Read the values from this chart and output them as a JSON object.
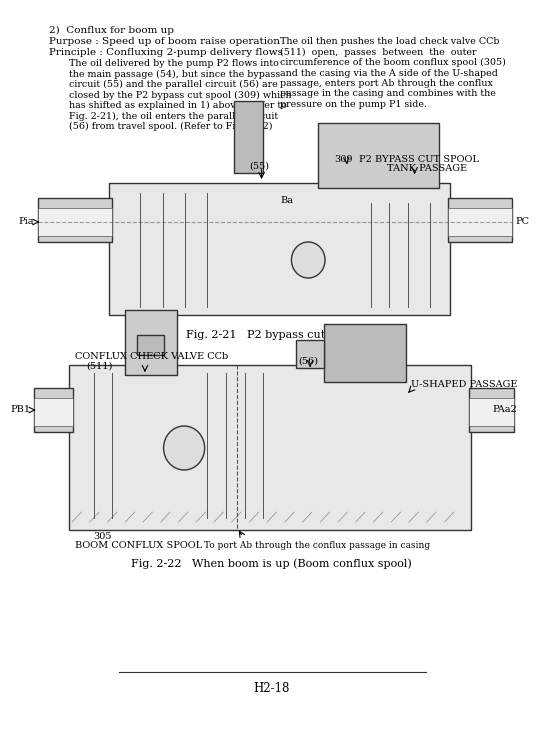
{
  "page_bg": "#ffffff",
  "text_color": "#000000",
  "page_number": "H2-18",
  "heading": "2)  Conflux for boom up",
  "line1": "Purpose : Speed up of boom raise operation",
  "line2": "Principle : Confluxing 2-pump delivery flows",
  "indent_text_left": [
    "The oil delivered by the pump P2 flows into",
    "the main passage (54), but since the bypass",
    "circuit (55) and the parallel circuit (56) are",
    "closed by the P2 bypass cut spool (309) which",
    "has shifted as explained in 1) above (Refer to",
    "Fig. 2-21), the oil enters the parallel circuit",
    "(56) from travel spool. (Refer to Fig. 2-22)"
  ],
  "right_text": [
    "The oil then pushes the load check valve CCb",
    "(511)  open,  passes  between  the  outer",
    "circumference of the boom conflux spool (305)",
    "and the casing via the A side of the U-shaped",
    "passage, enters port Ab through the conflux",
    "passage in the casing and combines with the",
    "pressure on the pump P1 side."
  ],
  "fig21_caption": "Fig. 2-21   P2 bypass cut valve",
  "fig22_caption": "Fig. 2-22   When boom is up (Boom conflux spool)",
  "fig21_labels": {
    "label_55": "(55)",
    "label_Ba": "Ba",
    "label_309": "309",
    "label_p2bypass": "P2 BYPASS CUT SPOOL",
    "label_tank": "TANK PASSAGE",
    "label_Pia": "Pia",
    "label_PC": "PC"
  },
  "fig22_labels": {
    "label_conflux": "CONFLUX CHECK VALVE CCb",
    "label_511": "(511)",
    "label_56": "(56)",
    "label_ushaped": "U-SHAPED PASSAGE",
    "label_PB1": "PB1",
    "label_PAa2": "PAa2",
    "label_305": "305",
    "label_boom": "BOOM CONFLUX SPOOL",
    "label_port": "To port Ab through the conflux passage in casing"
  }
}
